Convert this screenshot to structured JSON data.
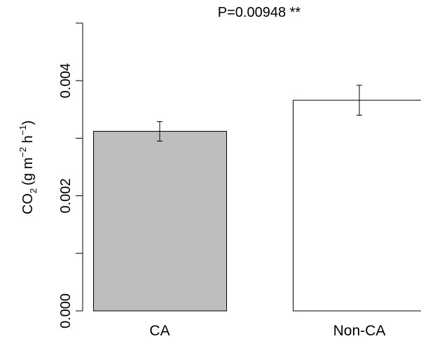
{
  "chart_data": {
    "type": "bar",
    "title": "P=0.00948 **",
    "ylabel": {
      "prefix": "CO",
      "prefix_sub": "2",
      "unit_open": "(g m",
      "unit_exp1": "−2",
      "unit_mid": " h",
      "unit_exp2": "−1",
      "unit_close": ")"
    },
    "xlabel": "",
    "categories": [
      "CA",
      "Non-CA"
    ],
    "values": [
      0.00312,
      0.00366
    ],
    "errors": [
      0.00017,
      0.00026
    ],
    "bar_colors": [
      "#bebebe",
      "#ffffff"
    ],
    "bar_stroke": "#000000",
    "ylim": [
      0,
      0.005
    ],
    "y_ticks": [
      0,
      0.001,
      0.002,
      0.003,
      0.004,
      0.005
    ],
    "y_tick_labels": [
      "0.000",
      "",
      "0.002",
      "",
      "0.004",
      ""
    ],
    "grid": false,
    "legend": "none"
  }
}
